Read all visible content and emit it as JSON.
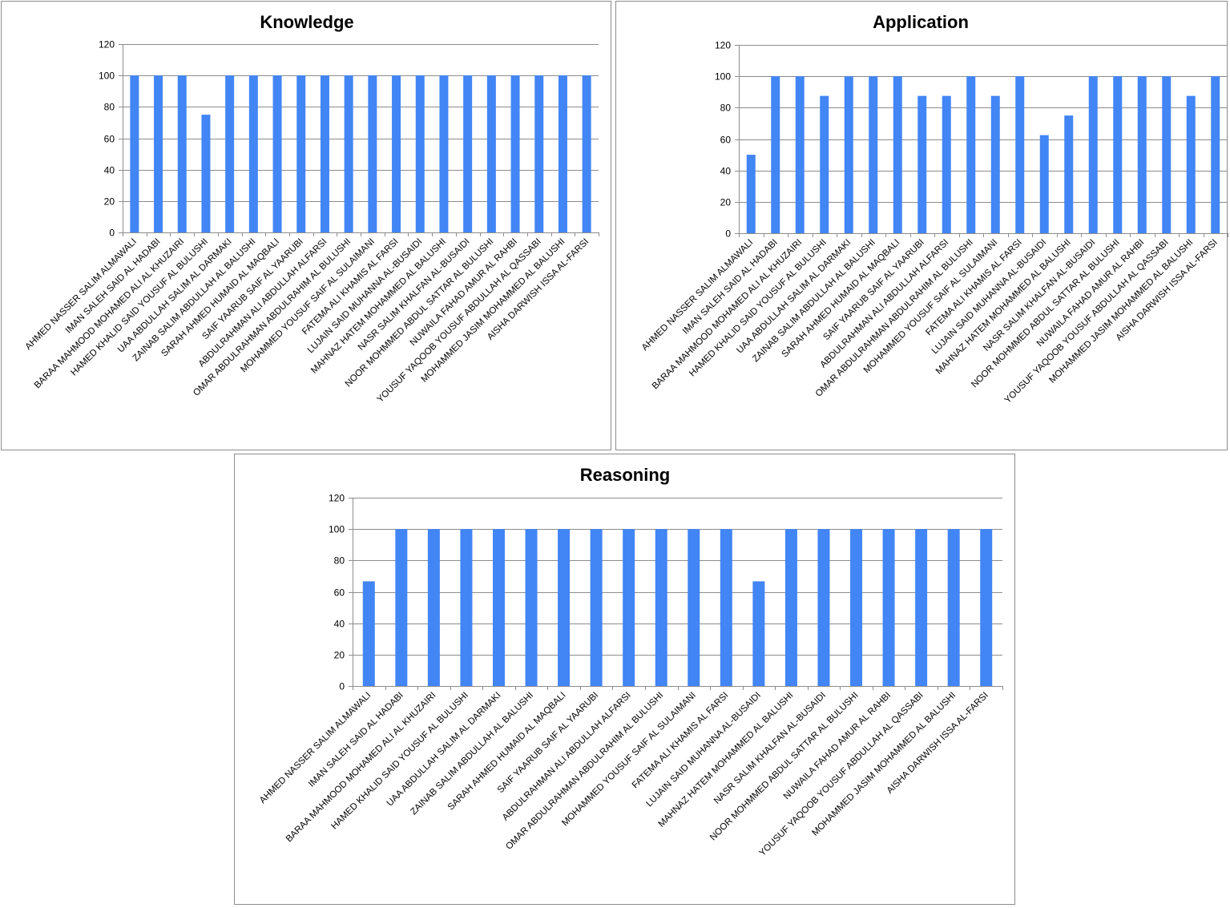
{
  "colors": {
    "bar": "#4285f4",
    "grid": "#8c8c8c",
    "axis": "#8c8c8c",
    "border": "#8c8c8c"
  },
  "chart_data": [
    {
      "type": "bar",
      "title": "Knowledge",
      "xlabel": "",
      "ylabel": "",
      "ylim": [
        0,
        120
      ],
      "yticks": [
        0,
        20,
        40,
        60,
        80,
        100,
        120
      ],
      "grid": true,
      "categories": [
        "AHMED NASSER SALIM ALMAWALI",
        "IMAN SALEH SAID AL HADABI",
        "BARAA MAHMOOD MOHAMED ALI AL KHUZAIRI",
        "HAMED KHALID SAID YOUSUF AL BULUSHI",
        "UAA ABDULLAH SALIM AL DARMAKI",
        "ZAINAB SALIM ABDULLAH AL BALUSHI",
        "SARAH AHMED HUMAID AL MAQBALI",
        "SAIF YAARUB SAIF AL YAARUBI",
        "ABDULRAHMAN ALI ABDULLAH ALFARSI",
        "OMAR ABDULRAHMAN ABDULRAHIM AL BULUSHI",
        "MOHAMMED YOUSUF SAIF AL SULAIMANI",
        "FATEMA ALI KHAMIS AL FARSI",
        "LUJAIN SAID MUHANNA AL-BUSAIDI",
        "MAHNAZ HATEM MOHAMMED AL BALUSHI",
        "NASR SALIM KHALFAN AL-BUSAIDI",
        "NOOR MOHMMED ABDUL SATTAR AL BULUSHI",
        "NUWAILA FAHAD AMUR AL RAHBI",
        "YOUSUF YAQOOB YOUSUF ABDULLAH AL QASSABI",
        "MOHAMMED JASIM MOHAMMED AL BALUSHI",
        "AISHA DARWISH ISSA AL-FARSI"
      ],
      "values": [
        100,
        100,
        100,
        75,
        100,
        100,
        100,
        100,
        100,
        100,
        100,
        100,
        100,
        100,
        100,
        100,
        100,
        100,
        100,
        100
      ]
    },
    {
      "type": "bar",
      "title": "Application",
      "xlabel": "",
      "ylabel": "",
      "ylim": [
        0,
        120
      ],
      "yticks": [
        0,
        20,
        40,
        60,
        80,
        100,
        120
      ],
      "grid": true,
      "categories": [
        "AHMED NASSER SALIM ALMAWALI",
        "IMAN SALEH SAID AL HADABI",
        "BARAA MAHMOOD MOHAMED ALI AL KHUZAIRI",
        "HAMED KHALID SAID YOUSUF AL BULUSHI",
        "UAA ABDULLAH SALIM AL DARMAKI",
        "ZAINAB SALIM ABDULLAH AL BALUSHI",
        "SARAH AHMED HUMAID AL MAQBALI",
        "SAIF YAARUB SAIF AL YAARUBI",
        "ABDULRAHMAN ALI ABDULLAH ALFARSI",
        "OMAR ABDULRAHMAN ABDULRAHIM AL BULUSHI",
        "MOHAMMED YOUSUF SAIF AL SULAIMANI",
        "FATEMA ALI KHAMIS AL FARSI",
        "LUJAIN SAID MUHANNA AL-BUSAIDI",
        "MAHNAZ HATEM MOHAMMED AL BALUSHI",
        "NASR SALIM KHALFAN AL-BUSAIDI",
        "NOOR MOHMMED ABDUL SATTAR AL BULUSHI",
        "NUWAILA FAHAD AMUR AL RAHBI",
        "YOUSUF YAQOOB YOUSUF ABDULLAH AL QASSABI",
        "MOHAMMED JASIM MOHAMMED AL BALUSHI",
        "AISHA DARWISH ISSA AL-FARSI"
      ],
      "values": [
        50,
        100,
        100,
        87.5,
        100,
        100,
        100,
        87.5,
        87.5,
        100,
        87.5,
        100,
        62.5,
        75,
        100,
        100,
        100,
        100,
        87.5,
        100
      ]
    },
    {
      "type": "bar",
      "title": "Reasoning",
      "xlabel": "",
      "ylabel": "",
      "ylim": [
        0,
        120
      ],
      "yticks": [
        0,
        20,
        40,
        60,
        80,
        100,
        120
      ],
      "grid": true,
      "categories": [
        "AHMED NASSER SALIM ALMAWALI",
        "IMAN SALEH SAID AL HADABI",
        "BARAA MAHMOOD MOHAMED ALI AL KHUZAIRI",
        "HAMED KHALID SAID YOUSUF AL BULUSHI",
        "UAA ABDULLAH SALIM AL DARMAKI",
        "ZAINAB SALIM ABDULLAH AL BALUSHI",
        "SARAH AHMED HUMAID AL MAQBALI",
        "SAIF YAARUB SAIF AL YAARUBI",
        "ABDULRAHMAN ALI ABDULLAH ALFARSI",
        "OMAR ABDULRAHMAN ABDULRAHIM AL BULUSHI",
        "MOHAMMED YOUSUF SAIF AL SULAIMANI",
        "FATEMA ALI KHAMIS AL FARSI",
        "LUJAIN SAID MUHANNA AL-BUSAIDI",
        "MAHNAZ HATEM MOHAMMED AL BALUSHI",
        "NASR SALIM KHALFAN AL-BUSAIDI",
        "NOOR MOHMMED ABDUL SATTAR AL BULUSHI",
        "NUWAILA FAHAD AMUR AL RAHBI",
        "YOUSUF YAQOOB YOUSUF ABDULLAH AL QASSABI",
        "MOHAMMED JASIM MOHAMMED AL BALUSHI",
        "AISHA DARWISH ISSA AL-FARSI"
      ],
      "values": [
        66.7,
        100,
        100,
        100,
        100,
        100,
        100,
        100,
        100,
        100,
        100,
        100,
        66.7,
        100,
        100,
        100,
        100,
        100,
        100,
        100
      ]
    }
  ]
}
